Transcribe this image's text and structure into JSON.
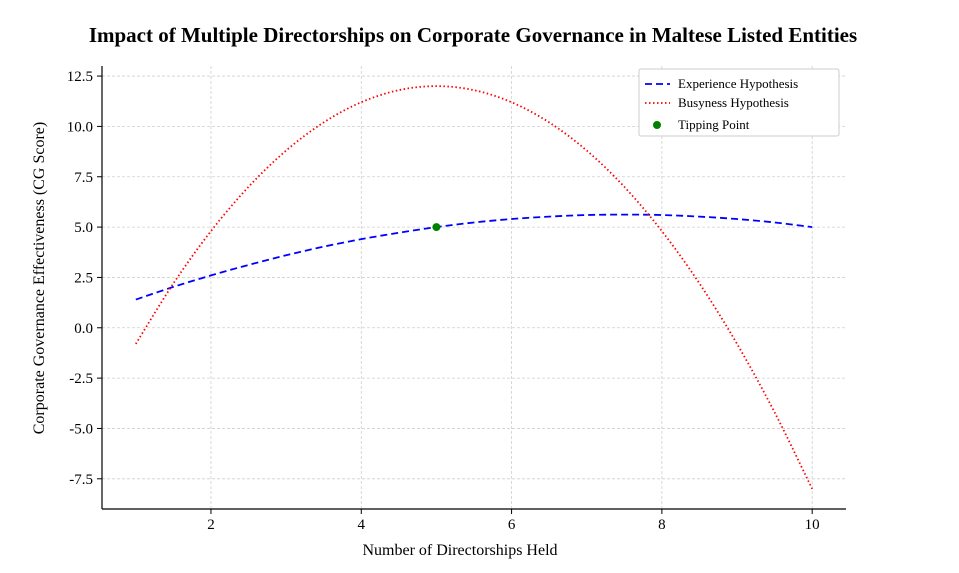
{
  "chart_data": {
    "type": "line",
    "title": "Impact of Multiple Directorships on Corporate Governance in Maltese Listed Entities",
    "xlabel": "Number of Directorships Held",
    "ylabel": "Corporate Governance Effectiveness (CG Score)",
    "xlim": [
      0.55,
      10.45
    ],
    "ylim": [
      -9.0,
      13.0
    ],
    "xticks": [
      2,
      4,
      6,
      8,
      10
    ],
    "xtick_labels": [
      "2",
      "4",
      "6",
      "8",
      "10"
    ],
    "yticks": [
      -7.5,
      -5.0,
      -2.5,
      0.0,
      2.5,
      5.0,
      7.5,
      10.0,
      12.5
    ],
    "ytick_labels": [
      "-7.5",
      "-5.0",
      "-2.5",
      "0.0",
      "2.5",
      "5.0",
      "7.5",
      "10.0",
      "12.5"
    ],
    "grid": true,
    "legend_position": "top-right",
    "x": [
      1,
      1.5,
      2,
      2.5,
      3,
      3.5,
      4,
      4.5,
      5,
      5.5,
      6,
      6.5,
      7,
      7.5,
      8,
      8.5,
      9,
      9.5,
      10
    ],
    "series": [
      {
        "name": "Experience Hypothesis",
        "color": "#0000ff",
        "style": "dashed",
        "values": [
          1.4,
          2.03,
          2.6,
          3.12,
          3.6,
          4.03,
          4.4,
          4.72,
          5.0,
          5.23,
          5.4,
          5.52,
          5.6,
          5.62,
          5.6,
          5.52,
          5.4,
          5.23,
          5.0
        ]
      },
      {
        "name": "Busyness Hypothesis",
        "color": "#ff0000",
        "style": "dotted",
        "values": [
          -0.8,
          2.2,
          4.8,
          7.0,
          8.8,
          10.2,
          11.2,
          11.8,
          12.0,
          11.8,
          11.2,
          10.2,
          8.8,
          7.0,
          4.8,
          2.2,
          -0.8,
          -4.2,
          -8.0
        ]
      }
    ],
    "points": [
      {
        "name": "Tipping Point",
        "x": 5,
        "y": 5.0,
        "color": "#008000"
      }
    ]
  }
}
